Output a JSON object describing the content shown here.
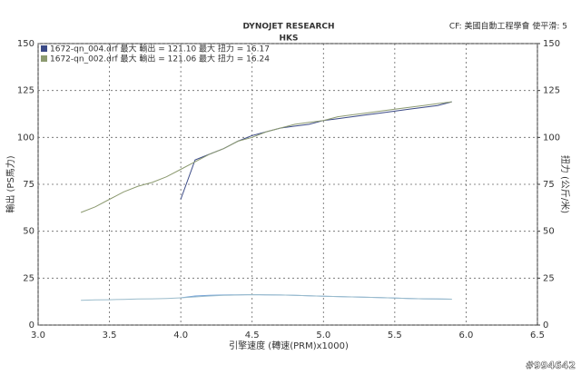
{
  "chart_data": {
    "type": "line",
    "title": "DYNOJET RESEARCH",
    "subtitle": "HKS",
    "note": "CF: 美國自動工程學會  使平滑: 5",
    "xlabel": "引擎速度 (轉速(PRM)x1000)",
    "ylabel": "輸出 (PS馬力)",
    "y2label": "扭力 (公斤/米)",
    "watermark": "#994642",
    "x": [
      3.3,
      3.4,
      3.5,
      3.6,
      3.7,
      3.8,
      3.9,
      4.0,
      4.1,
      4.2,
      4.3,
      4.4,
      4.5,
      4.6,
      4.7,
      4.8,
      4.9,
      5.0,
      5.1,
      5.2,
      5.3,
      5.4,
      5.5,
      5.6,
      5.7,
      5.8,
      5.9
    ],
    "series": [
      {
        "name": "1672-qn_004.drf 最大 輸出 = 121.10    最大 扭力 = 16.17",
        "color": "#3b4a86",
        "torque_color": "#6f9fd6",
        "values": [
          null,
          null,
          null,
          null,
          null,
          null,
          null,
          67,
          88,
          91,
          94,
          98,
          101,
          103,
          105,
          106,
          107,
          109,
          110,
          111,
          112,
          113,
          114,
          115,
          116,
          117,
          119
        ],
        "torque": [
          null,
          null,
          null,
          null,
          null,
          null,
          null,
          14.5,
          15.5,
          15.8,
          16,
          16.1,
          16.2,
          16.1,
          16,
          15.8,
          15.6,
          15.4,
          15.2,
          15,
          14.8,
          14.6,
          14.4,
          14.2,
          14,
          13.9,
          13.8
        ]
      },
      {
        "name": "1672-qn_002.drf 最大 輸出 = 121.06    最大 扭力 = 16.24",
        "color": "#8c9a70",
        "torque_color": "#9bbccc",
        "values": [
          60,
          63,
          67,
          71,
          74,
          76,
          79,
          83,
          87,
          91,
          94,
          98,
          100,
          103,
          105,
          107,
          108,
          109,
          111,
          112,
          113,
          114,
          115,
          116,
          117,
          118,
          119
        ],
        "torque": [
          13.2,
          13.4,
          13.5,
          13.7,
          13.9,
          14,
          14.2,
          14.5,
          15,
          15.5,
          15.8,
          16,
          16.2,
          16.1,
          16,
          15.8,
          15.6,
          15.4,
          15.2,
          15,
          14.8,
          14.6,
          14.4,
          14.2,
          14,
          13.9,
          13.8
        ]
      }
    ],
    "xlim": [
      3.0,
      6.5
    ],
    "xticks": [
      {
        "value": 3.0,
        "label": "3.0"
      },
      {
        "value": 3.5,
        "label": "3.5"
      },
      {
        "value": 4.0,
        "label": "4.0"
      },
      {
        "value": 4.5,
        "label": "4.5"
      },
      {
        "value": 5.0,
        "label": "5.0"
      },
      {
        "value": 5.5,
        "label": "5.5"
      },
      {
        "value": 6.0,
        "label": "6.0"
      },
      {
        "value": 6.5,
        "label": "6.5"
      }
    ],
    "ylim": [
      0,
      150
    ],
    "yticks": [
      0,
      25,
      50,
      75,
      100,
      125,
      150
    ],
    "y2lim": [
      0,
      150
    ],
    "y2ticks": [
      0,
      25,
      50,
      75,
      100,
      125,
      150
    ],
    "grid": true
  }
}
